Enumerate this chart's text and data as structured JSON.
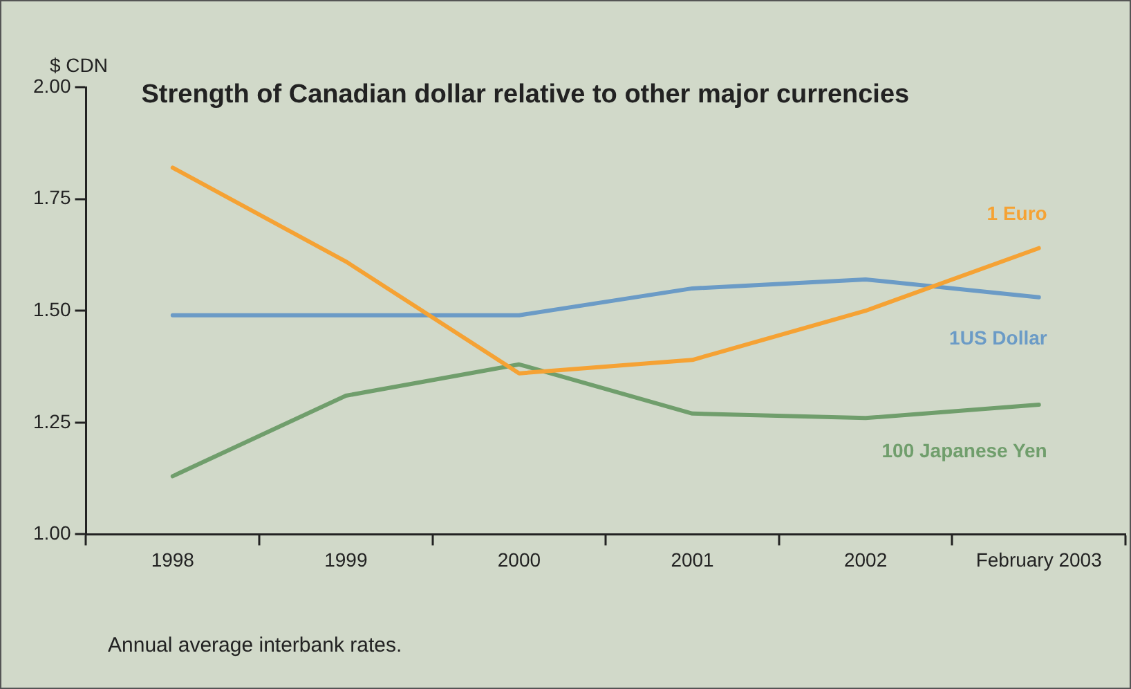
{
  "chart_data": {
    "type": "line",
    "title": "Strength of Canadian dollar relative to other major currencies",
    "ylabel": "$ CDN",
    "categories": [
      "1998",
      "1999",
      "2000",
      "2001",
      "2002",
      "February 2003"
    ],
    "series": [
      {
        "name": "1 Euro",
        "color": "#f5a234",
        "values": [
          1.82,
          1.61,
          1.36,
          1.39,
          1.5,
          1.64
        ]
      },
      {
        "name": "1US Dollar",
        "color": "#6b9bc6",
        "values": [
          1.49,
          1.49,
          1.49,
          1.55,
          1.57,
          1.53
        ]
      },
      {
        "name": "100 Japanese Yen",
        "color": "#709e6c",
        "values": [
          1.13,
          1.31,
          1.38,
          1.27,
          1.26,
          1.29
        ]
      }
    ],
    "ylim": [
      1,
      2
    ],
    "yticks": [
      {
        "value": 1,
        "label": "1.00"
      },
      1.25,
      {
        "value": 1.5,
        "label": "1.50"
      },
      1.75,
      {
        "value": 2,
        "label": "2.00"
      }
    ],
    "grid": false,
    "legend": false,
    "marker": "none",
    "line_style": "solid",
    "annotations": [
      "Annual average interbank rates."
    ]
  }
}
